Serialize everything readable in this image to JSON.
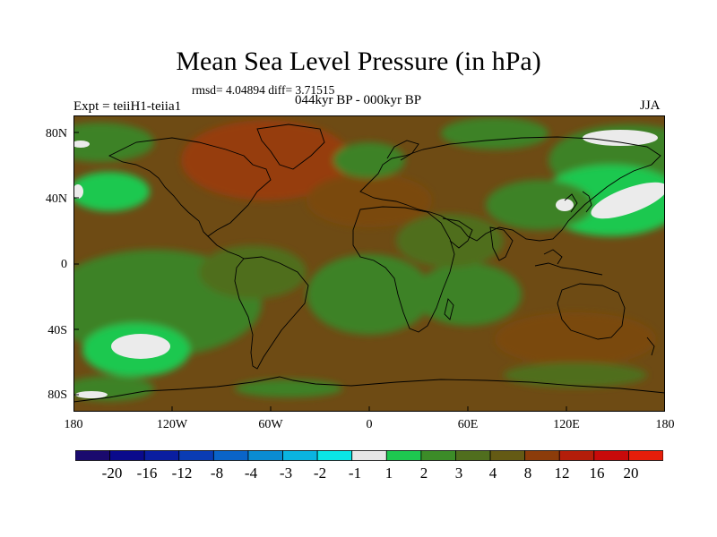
{
  "title": "Mean Sea Level Pressure (in hPa)",
  "stats": "rmsd= 4.04894 diff= 3.71515",
  "experiment": "Expt = teiiH1-teiia1",
  "period": "044kyr BP - 000kyr BP",
  "season": "JJA",
  "lat_labels": [
    "80N",
    "40N",
    "0",
    "40S",
    "80S"
  ],
  "lon_labels": [
    "180",
    "120W",
    "60W",
    "0",
    "60E",
    "120E",
    "180"
  ],
  "colorbar": {
    "labels": [
      "-20",
      "-16",
      "-12",
      "-8",
      "-4",
      "-3",
      "-2",
      "-1",
      "1",
      "2",
      "3",
      "4",
      "8",
      "12",
      "16",
      "20"
    ],
    "colors": [
      "#1a0a6e",
      "#0a0a8c",
      "#0a1ea0",
      "#0a3cb4",
      "#0a64c8",
      "#0a8cd2",
      "#0ab4e0",
      "#0ae6e6",
      "#e6e6e6",
      "#1ec850",
      "#3c8c28",
      "#506e1e",
      "#645a14",
      "#8c3c0a",
      "#b41e0a",
      "#c80a0a",
      "#e61e0a"
    ]
  },
  "colors": {
    "background_field": "#6e4b14",
    "green_zone": "#3c8228",
    "light_green": "#1ec850",
    "white_zone": "#ebebeb",
    "red_zone": "#963c0a",
    "dark_brown": "#645a14"
  }
}
